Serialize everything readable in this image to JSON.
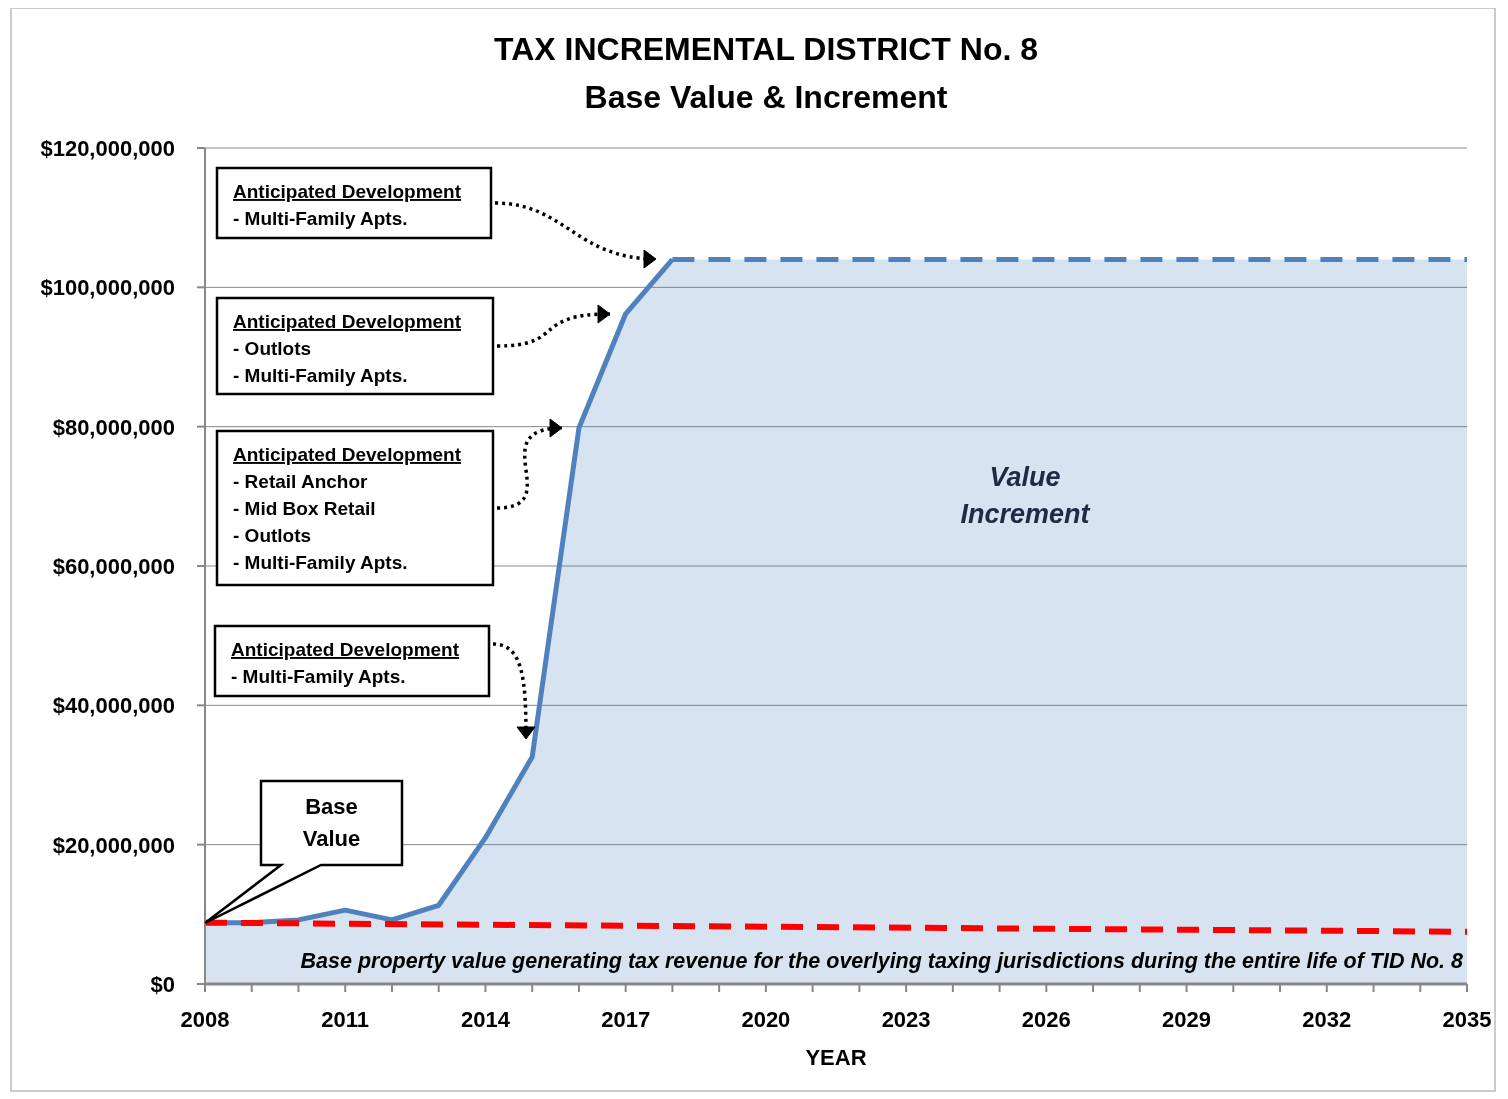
{
  "chart_data": {
    "type": "area",
    "title": "TAX INCREMENTAL DISTRICT No. 8",
    "subtitle": "Base Value & Increment",
    "xlabel": "YEAR",
    "xlim": [
      2008,
      2035
    ],
    "xticks": [
      2008,
      {
        "value": 2009,
        "label": null
      },
      {
        "value": 2010,
        "label": null
      },
      2011,
      {
        "value": 2012,
        "label": null
      },
      {
        "value": 2013,
        "label": null
      },
      2014,
      {
        "value": 2015,
        "label": null
      },
      {
        "value": 2016,
        "label": null
      },
      2017,
      {
        "value": 2018,
        "label": null
      },
      {
        "value": 2019,
        "label": null
      },
      2020,
      {
        "value": 2021,
        "label": null
      },
      {
        "value": 2022,
        "label": null
      },
      2023,
      {
        "value": 2024,
        "label": null
      },
      {
        "value": 2025,
        "label": null
      },
      2026,
      {
        "value": 2027,
        "label": null
      },
      {
        "value": 2028,
        "label": null
      },
      2029,
      {
        "value": 2030,
        "label": null
      },
      {
        "value": 2031,
        "label": null
      },
      2032,
      {
        "value": 2033,
        "label": null
      },
      {
        "value": 2034,
        "label": null
      },
      2035
    ],
    "ylim": [
      0,
      120000000
    ],
    "yticks": [
      {
        "value": 0,
        "label": "$0"
      },
      {
        "value": 20000000,
        "label": "$20,000,000"
      },
      {
        "value": 40000000,
        "label": "$40,000,000"
      },
      {
        "value": 60000000,
        "label": "$60,000,000"
      },
      {
        "value": 80000000,
        "label": "$80,000,000"
      },
      {
        "value": 100000000,
        "label": "$100,000,000"
      },
      {
        "value": 120000000,
        "label": "$120,000,000"
      }
    ],
    "grid": "y",
    "series": [
      {
        "type": "area",
        "color": "#4f81bd",
        "line_style": "solid",
        "x": [
          2008,
          2009,
          2010,
          2011,
          2012,
          2013,
          2014,
          2015,
          2016,
          2017,
          2018
        ],
        "values": [
          8800000,
          8800000,
          9200000,
          10600000,
          9200000,
          11300000,
          21000000,
          32600000,
          79800000,
          96200000,
          104000000
        ]
      },
      {
        "type": "area",
        "color": "#4f81bd",
        "line_style": "dashed",
        "x": [
          2018,
          2035
        ],
        "values": [
          104000000,
          104000000
        ]
      },
      {
        "type": "line",
        "color": "#ff0000",
        "line_style": "dashed",
        "x": [
          2008,
          2035
        ],
        "values": [
          8800000,
          7500000
        ]
      }
    ],
    "annotations": [
      "Anticipated Development\n- Multi-Family Apts.",
      "Anticipated Development\n- Outlots\n- Multi-Family Apts.",
      "Anticipated Development\n- Retail Anchor\n- Mid Box Retail\n- Outlots\n- Multi-Family Apts.",
      "Anticipated Development\n- Multi-Family Apts.",
      "Base\nValue",
      "Value\nIncrement",
      "Base property value generating tax revenue for the overlying taxing jurisdictions during the entire life of TID No. 8"
    ]
  }
}
